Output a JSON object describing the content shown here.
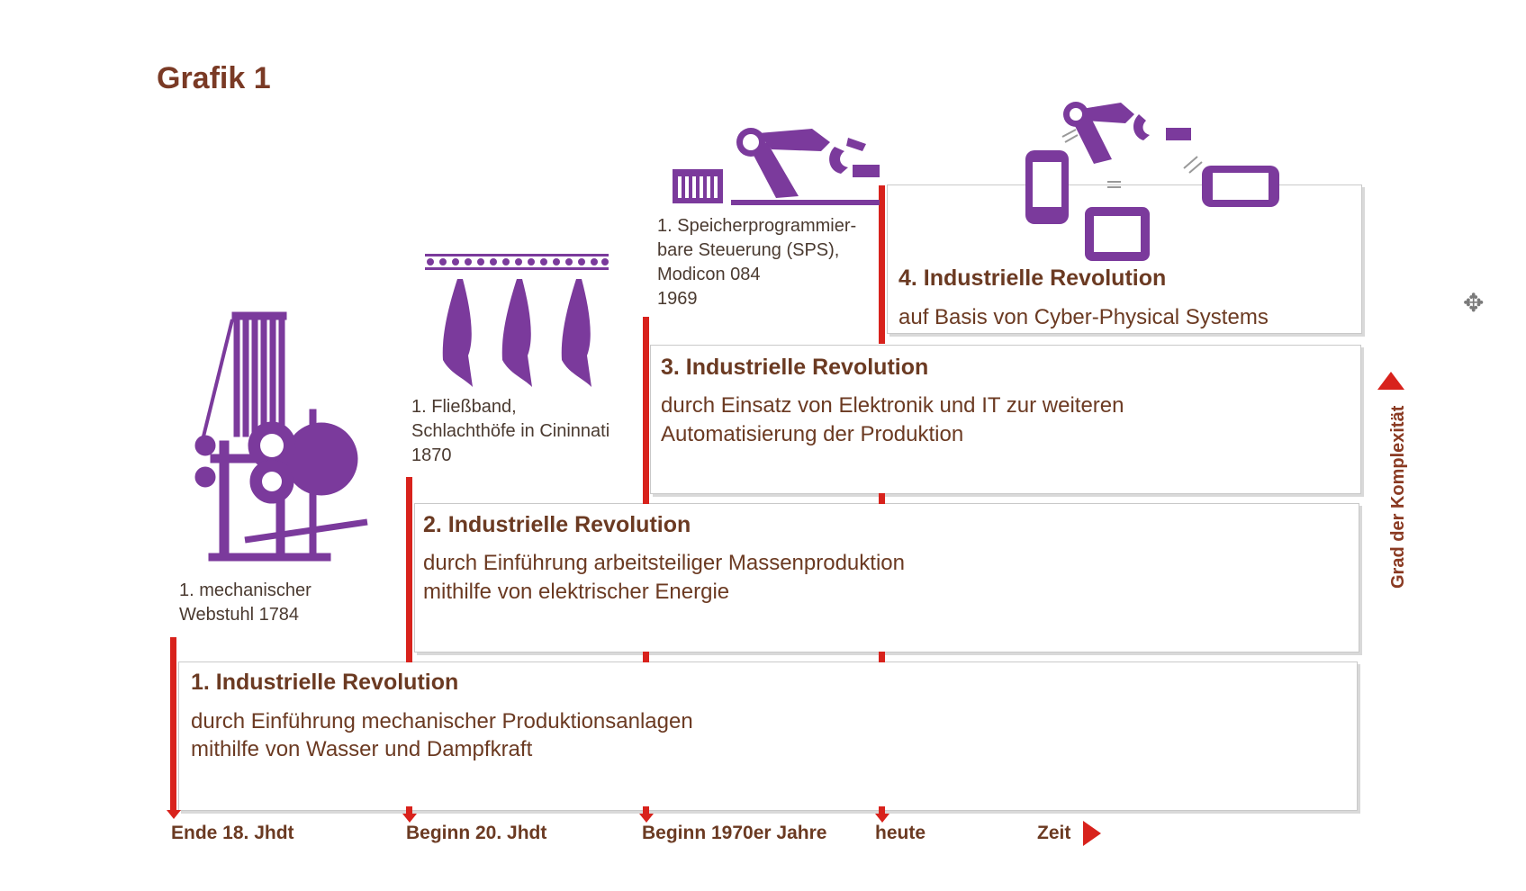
{
  "title": "Grafik 1",
  "revolutions": [
    {
      "title": "1. Industrielle Revolution",
      "lines": [
        "durch Einführung mechanischer Produktionsanlagen",
        "mithilfe von Wasser und Dampfkraft"
      ],
      "milestone": [
        "1. mechanischer",
        "Webstuhl 1784"
      ]
    },
    {
      "title": "2. Industrielle Revolution",
      "lines": [
        "durch Einführung arbeitsteiliger Massenproduktion",
        "mithilfe von elektrischer Energie"
      ],
      "milestone": [
        "1. Fließband,",
        "Schlachthöfe in Cininnati",
        "1870"
      ]
    },
    {
      "title": "3. Industrielle Revolution",
      "lines": [
        "durch Einsatz von Elektronik und IT zur weiteren",
        "Automatisierung der Produktion"
      ],
      "milestone": [
        "1. Speicherprogrammier-",
        "bare Steuerung (SPS),",
        "Modicon 084",
        "1969"
      ]
    },
    {
      "title": "4. Industrielle Revolution",
      "lines": [
        "auf Basis von Cyber-Physical Systems"
      ]
    }
  ],
  "time_axis": {
    "labels": [
      "Ende 18. Jhdt",
      "Beginn 20. Jhdt",
      "Beginn 1970er Jahre",
      "heute"
    ],
    "axis_label": "Zeit"
  },
  "complexity_label": "Grad der Komplexität",
  "colors": {
    "accent": "#d8221c",
    "icon": "#7b3a9c",
    "text": "#6b3a22"
  },
  "icons": [
    "loom-icon",
    "conveyor-meat-icon",
    "robot-arm-icon",
    "plc-icon",
    "cyber-physical-icon",
    "cursor-icon"
  ]
}
